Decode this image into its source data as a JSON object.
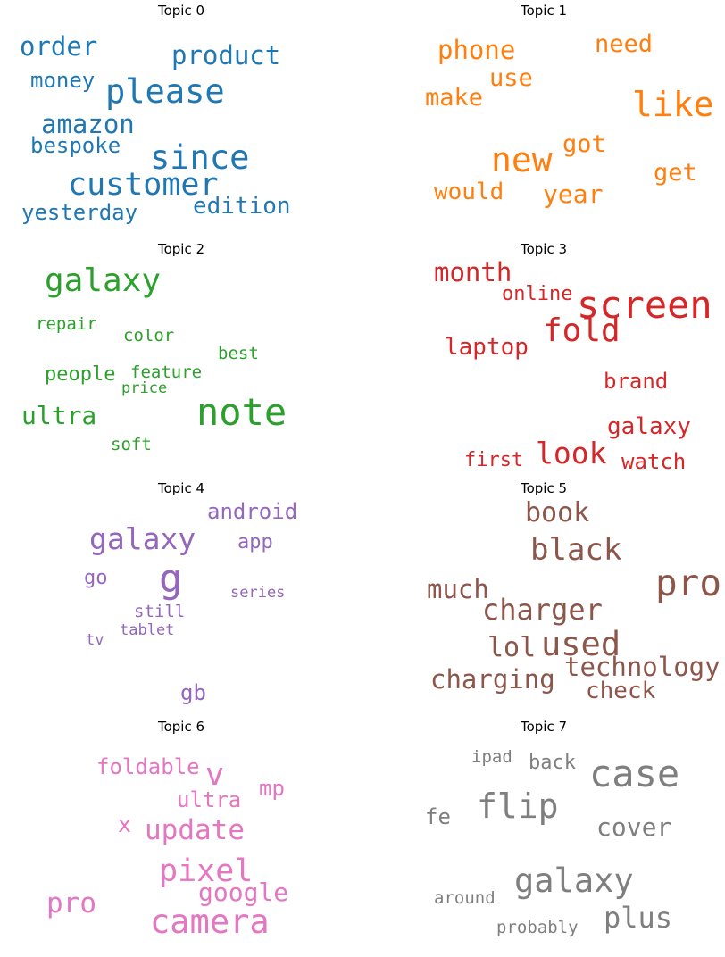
{
  "chart_data": {
    "type": "wordcloud",
    "topics": [
      {
        "title": "Topic 0",
        "color": "#1f77b4",
        "words": [
          "order",
          "product",
          "money",
          "please",
          "amazon",
          "bespoke",
          "since",
          "customer",
          "yesterday",
          "edition"
        ]
      },
      {
        "title": "Topic 1",
        "color": "#ff7f0e",
        "words": [
          "phone",
          "need",
          "use",
          "make",
          "like",
          "got",
          "new",
          "get",
          "would",
          "year"
        ]
      },
      {
        "title": "Topic 2",
        "color": "#2ca02c",
        "words": [
          "galaxy",
          "repair",
          "color",
          "best",
          "feature",
          "people",
          "price",
          "note",
          "ultra",
          "soft"
        ]
      },
      {
        "title": "Topic 3",
        "color": "#d62728",
        "words": [
          "month",
          "online",
          "screen",
          "fold",
          "laptop",
          "brand",
          "galaxy",
          "look",
          "first",
          "watch"
        ]
      },
      {
        "title": "Topic 4",
        "color": "#9467bd",
        "words": [
          "android",
          "galaxy",
          "app",
          "g",
          "go",
          "series",
          "still",
          "tablet",
          "tv",
          "gb"
        ]
      },
      {
        "title": "Topic 5",
        "color": "#8c564b",
        "words": [
          "book",
          "black",
          "pro",
          "much",
          "charger",
          "used",
          "lol",
          "technology",
          "charging",
          "check"
        ]
      },
      {
        "title": "Topic 6",
        "color": "#e377c2",
        "words": [
          "foldable",
          "v",
          "mp",
          "ultra",
          "x",
          "update",
          "pixel",
          "google",
          "pro",
          "camera"
        ]
      },
      {
        "title": "Topic 7",
        "color": "#7f7f7f",
        "words": [
          "ipad",
          "back",
          "case",
          "fe",
          "flip",
          "cover",
          "galaxy",
          "around",
          "plus",
          "probably"
        ]
      }
    ]
  }
}
